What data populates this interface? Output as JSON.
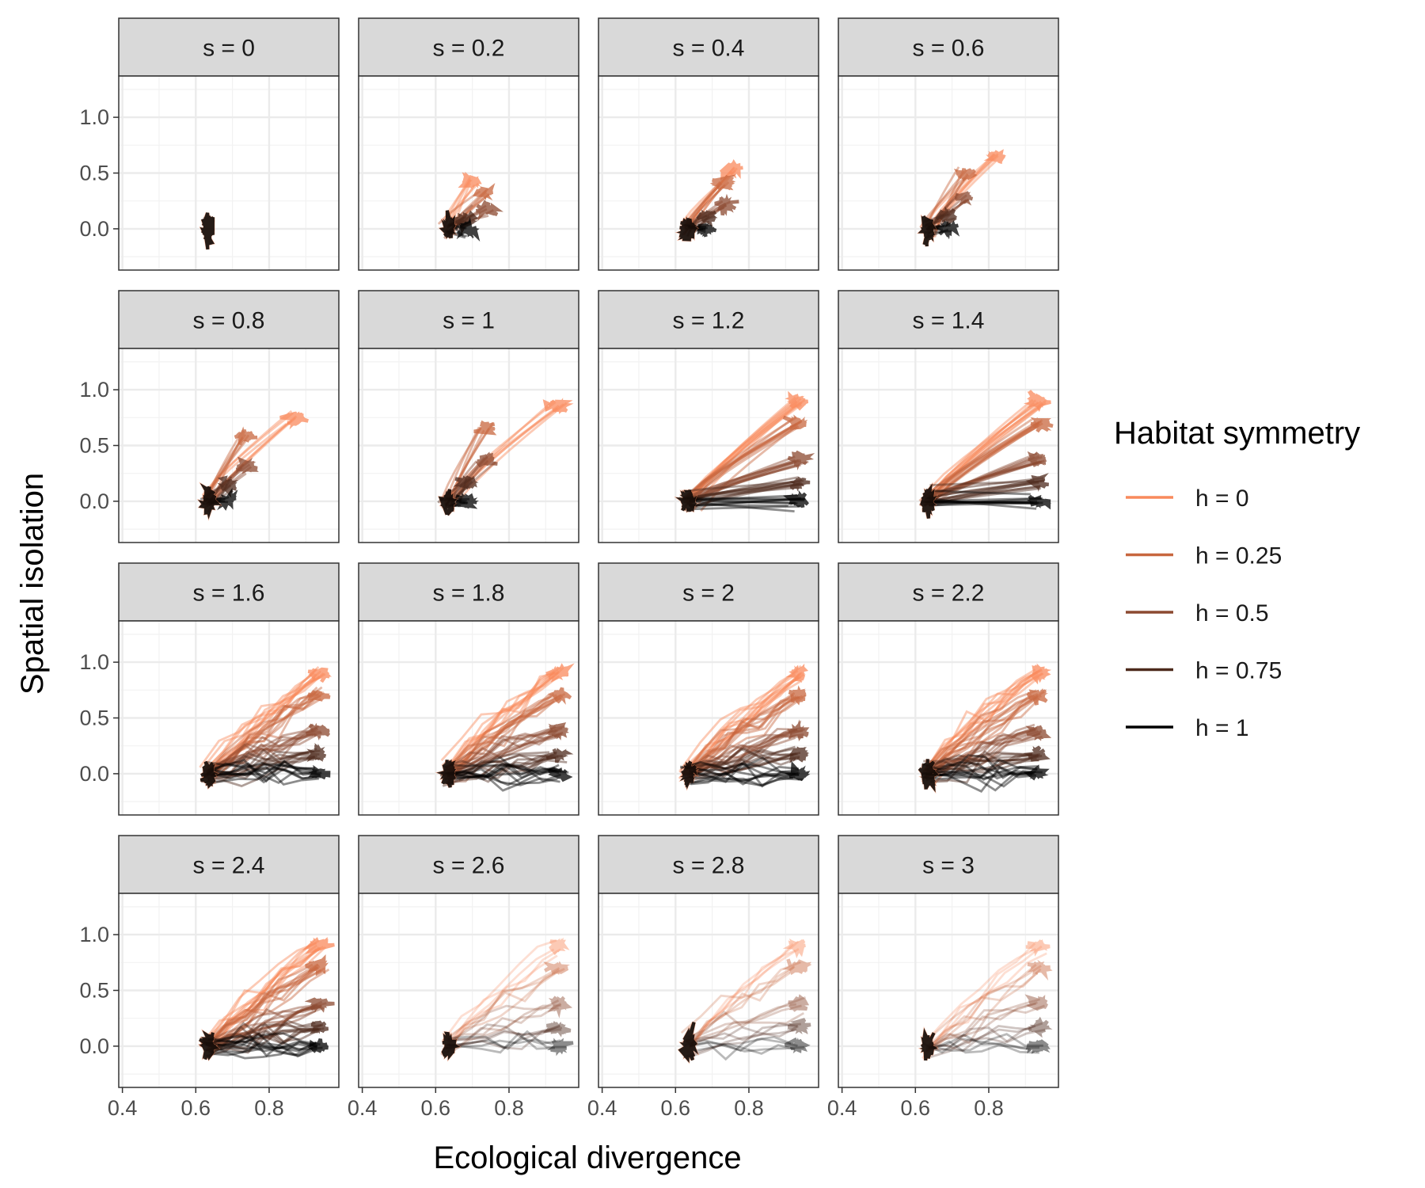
{
  "chart_data": {
    "type": "line",
    "xlabel": "Ecological divergence",
    "ylabel": "Spatial isolation",
    "xlim": [
      0.39,
      0.99
    ],
    "ylim": [
      -0.37,
      1.37
    ],
    "x_ticks": [
      0.4,
      0.6,
      0.8
    ],
    "x_tick_labels": [
      "0.4",
      "0.6",
      "0.8"
    ],
    "y_ticks": [
      0.0,
      0.5,
      1.0
    ],
    "y_tick_labels": [
      "0.0",
      "0.5",
      "1.0"
    ],
    "grid": true,
    "facet_rows": 4,
    "facet_cols": 4,
    "panels": [
      {
        "label": "s = 0",
        "s": 0
      },
      {
        "label": "s = 0.2",
        "s": 0.2
      },
      {
        "label": "s = 0.4",
        "s": 0.4
      },
      {
        "label": "s = 0.6",
        "s": 0.6
      },
      {
        "label": "s = 0.8",
        "s": 0.8
      },
      {
        "label": "s = 1",
        "s": 1
      },
      {
        "label": "s = 1.2",
        "s": 1.2
      },
      {
        "label": "s = 1.4",
        "s": 1.4
      },
      {
        "label": "s = 1.6",
        "s": 1.6
      },
      {
        "label": "s = 1.8",
        "s": 1.8
      },
      {
        "label": "s = 2",
        "s": 2
      },
      {
        "label": "s = 2.2",
        "s": 2.2
      },
      {
        "label": "s = 2.4",
        "s": 2.4
      },
      {
        "label": "s = 2.6",
        "s": 2.6
      },
      {
        "label": "s = 2.8",
        "s": 2.8
      },
      {
        "label": "s = 3",
        "s": 3
      }
    ],
    "series": [
      {
        "name": "h = 0",
        "h": 0,
        "color": "#F98A5C",
        "final_isolation": 0.9
      },
      {
        "name": "h = 0.25",
        "h": 0.25,
        "color": "#C8673F",
        "final_isolation": 0.7
      },
      {
        "name": "h = 0.5",
        "h": 0.5,
        "color": "#8C4A30",
        "final_isolation": 0.38
      },
      {
        "name": "h = 0.75",
        "h": 0.75,
        "color": "#4D2A1C",
        "final_isolation": 0.17
      },
      {
        "name": "h = 1",
        "h": 1,
        "color": "#000000",
        "final_isolation": 0.0
      }
    ],
    "start_point": {
      "x": 0.635,
      "y": 0.0
    },
    "legend": {
      "title": "Habitat symmetry",
      "position": "right"
    }
  }
}
